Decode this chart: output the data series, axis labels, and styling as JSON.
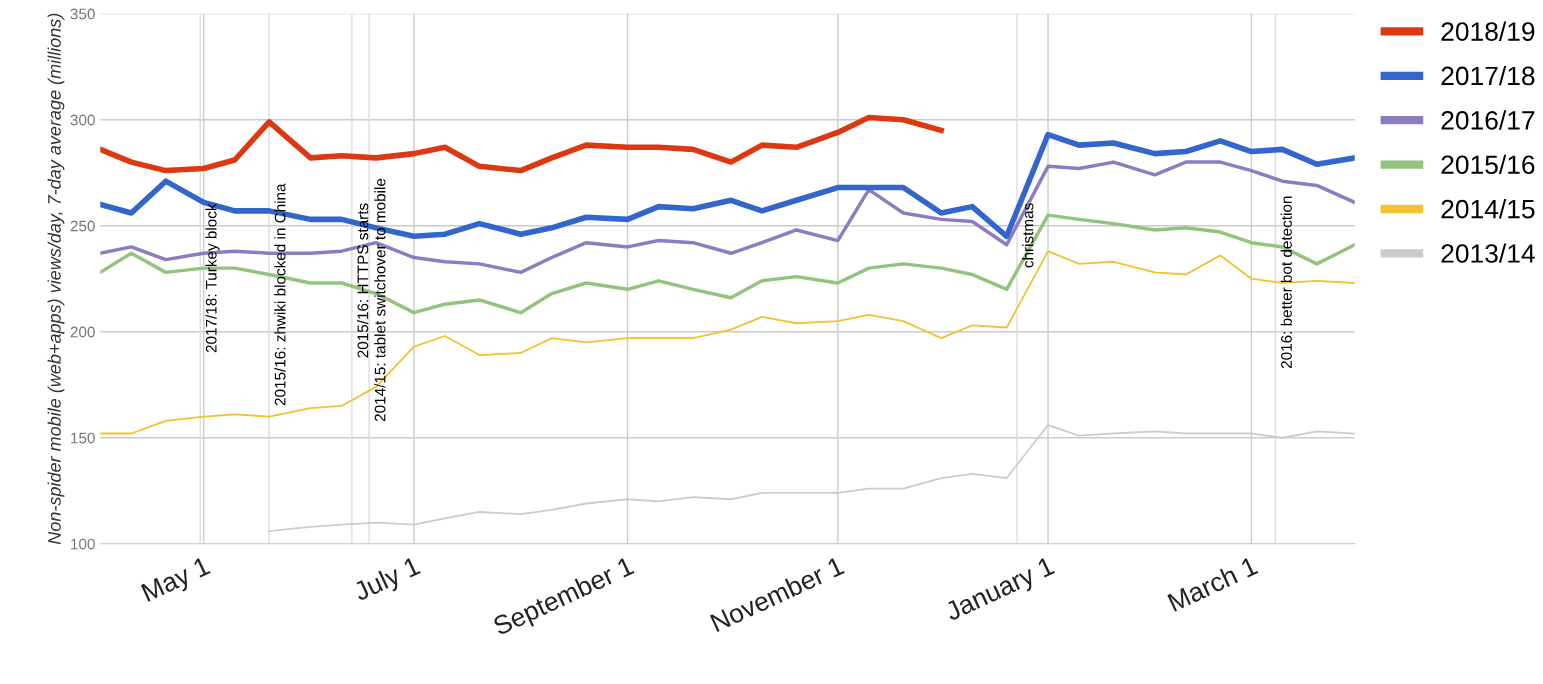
{
  "chart_data": {
    "type": "line",
    "ylabel": "Non-spider mobile (web+apps) views/day, 7-day average (millions)",
    "x": [
      "2018-04-01",
      "2018-04-10",
      "2018-04-20",
      "2018-05-01",
      "2018-05-10",
      "2018-05-20",
      "2018-06-01",
      "2018-06-10",
      "2018-06-20",
      "2018-07-01",
      "2018-07-10",
      "2018-07-20",
      "2018-08-01",
      "2018-08-10",
      "2018-08-20",
      "2018-09-01",
      "2018-09-10",
      "2018-09-20",
      "2018-10-01",
      "2018-10-10",
      "2018-10-20",
      "2018-11-01",
      "2018-11-10",
      "2018-11-20",
      "2018-12-01",
      "2018-12-10",
      "2018-12-20",
      "2019-01-01",
      "2019-01-10",
      "2019-01-20",
      "2019-02-01",
      "2019-02-10",
      "2019-02-20",
      "2019-03-01",
      "2019-03-10",
      "2019-03-20",
      "2019-03-31"
    ],
    "series": [
      {
        "name": "2018/19",
        "color": "#dc3912",
        "values": [
          286,
          280,
          276,
          277,
          281,
          299,
          282,
          283,
          282,
          284,
          287,
          278,
          276,
          282,
          288,
          287,
          287,
          286,
          280,
          288,
          287,
          294,
          301,
          300,
          295,
          null,
          null,
          null,
          null,
          null,
          null,
          null,
          null,
          null,
          null,
          null,
          null
        ]
      },
      {
        "name": "2017/18",
        "color": "#3366cc",
        "values": [
          260,
          256,
          271,
          261,
          257,
          257,
          253,
          253,
          249,
          245,
          246,
          251,
          246,
          249,
          254,
          253,
          259,
          258,
          262,
          257,
          262,
          268,
          268,
          268,
          256,
          259,
          245,
          293,
          288,
          289,
          284,
          285,
          290,
          285,
          286,
          279,
          282
        ]
      },
      {
        "name": "2016/17",
        "color": "#8e7cc3",
        "values": [
          237,
          240,
          234,
          237,
          238,
          237,
          237,
          238,
          242,
          235,
          233,
          232,
          228,
          235,
          242,
          240,
          243,
          242,
          237,
          242,
          248,
          243,
          267,
          256,
          253,
          252,
          241,
          278,
          277,
          280,
          274,
          280,
          280,
          276,
          271,
          269,
          261
        ]
      },
      {
        "name": "2015/16",
        "color": "#93c47d",
        "values": [
          228,
          237,
          228,
          230,
          230,
          227,
          223,
          223,
          218,
          209,
          213,
          215,
          209,
          218,
          223,
          220,
          224,
          220,
          216,
          224,
          226,
          223,
          230,
          232,
          230,
          227,
          220,
          255,
          253,
          251,
          248,
          249,
          247,
          242,
          240,
          232,
          241
        ]
      },
      {
        "name": "2014/15",
        "color": "#f1c232",
        "values": [
          152,
          152,
          158,
          160,
          161,
          160,
          164,
          165,
          174,
          193,
          198,
          189,
          190,
          197,
          195,
          197,
          197,
          197,
          201,
          207,
          204,
          205,
          208,
          205,
          197,
          203,
          202,
          238,
          232,
          233,
          228,
          227,
          236,
          225,
          223,
          224,
          223
        ]
      },
      {
        "name": "2013/14",
        "color": "#cccccc",
        "values": [
          null,
          null,
          null,
          null,
          null,
          106,
          108,
          109,
          110,
          109,
          112,
          115,
          114,
          116,
          119,
          121,
          120,
          122,
          121,
          124,
          124,
          124,
          126,
          126,
          131,
          133,
          131,
          156,
          151,
          152,
          153,
          152,
          152,
          152,
          150,
          153,
          152
        ]
      }
    ],
    "xlim": [
      "2018-04-01",
      "2019-03-31"
    ],
    "xticks": [
      {
        "value": "2018-05-01",
        "label": "May 1"
      },
      {
        "value": "2018-07-01",
        "label": "July 1"
      },
      {
        "value": "2018-09-01",
        "label": "September 1"
      },
      {
        "value": "2018-11-01",
        "label": "November 1"
      },
      {
        "value": "2019-01-01",
        "label": "January 1"
      },
      {
        "value": "2019-03-01",
        "label": "March 1"
      }
    ],
    "ylim": [
      100,
      350
    ],
    "yticks": [
      100,
      150,
      200,
      250,
      300,
      350
    ],
    "ref_lines": [
      {
        "axis": "x",
        "value": "2018-04-30",
        "label": "2017/18: Turkey block",
        "color": "#dddddd"
      },
      {
        "axis": "x",
        "value": "2018-05-20",
        "label": "2015/16: zhwiki blocked in China",
        "color": "#dddddd"
      },
      {
        "axis": "x",
        "value": "2018-06-13",
        "label": "2015/16: HTTPS starts",
        "color": "#dddddd"
      },
      {
        "axis": "x",
        "value": "2018-06-18",
        "label": "2014/15: tablet switchover to mobile",
        "color": "#dddddd"
      },
      {
        "axis": "x",
        "value": "2018-12-23",
        "label": "christmas",
        "color": "#dddddd"
      },
      {
        "axis": "x",
        "value": "2019-03-08",
        "label": "2016: better bot detection",
        "color": "#dddddd"
      }
    ],
    "grid": true,
    "legend": "right",
    "marker": "none",
    "line_style": "solid"
  }
}
